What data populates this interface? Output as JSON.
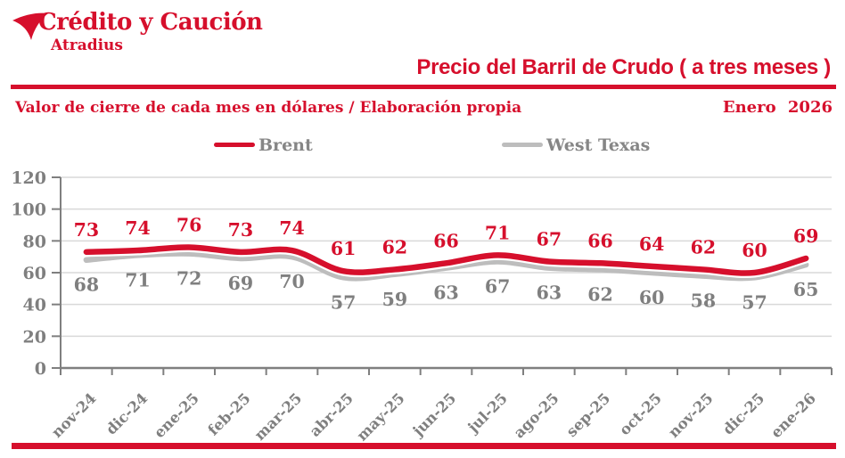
{
  "brand": {
    "name": "Crédito y Caución",
    "sub": "Atradius"
  },
  "header": {
    "title": "Precio del Barril de Crudo ( a tres meses )",
    "subtitle": "Valor de cierre de cada mes en dólares / Elaboración propia",
    "date": "Enero 2026"
  },
  "colors": {
    "brand_red": "#d60f2c",
    "gray_line": "#bdbdbd",
    "gray_text": "#7f7f7f",
    "grid": "#d9d9d9",
    "axis": "#7f7f7f"
  },
  "chart_data": {
    "type": "line",
    "title": "Precio del Barril de Crudo ( a tres meses )",
    "subtitle": "Valor de cierre de cada mes en dólares / Elaboración propia",
    "categories": [
      "nov-24",
      "dic-24",
      "ene-25",
      "feb-25",
      "mar-25",
      "abr-25",
      "may-25",
      "jun-25",
      "jul-25",
      "ago-25",
      "sep-25",
      "oct-25",
      "nov-25",
      "dic-25",
      "ene-26"
    ],
    "series": [
      {
        "name": "Brent",
        "color": "#d60f2c",
        "values": [
          73,
          74,
          76,
          73,
          74,
          61,
          62,
          66,
          71,
          67,
          66,
          64,
          62,
          60,
          69
        ]
      },
      {
        "name": "West Texas",
        "color": "#bdbdbd",
        "values": [
          68,
          71,
          72,
          69,
          70,
          57,
          59,
          63,
          67,
          63,
          62,
          60,
          58,
          57,
          65
        ]
      }
    ],
    "ylim": [
      0,
      120
    ],
    "yticks": [
      0,
      20,
      40,
      60,
      80,
      100,
      120
    ],
    "grid": true,
    "legend_position": "top",
    "smoothing": "spline",
    "data_labels": true
  }
}
